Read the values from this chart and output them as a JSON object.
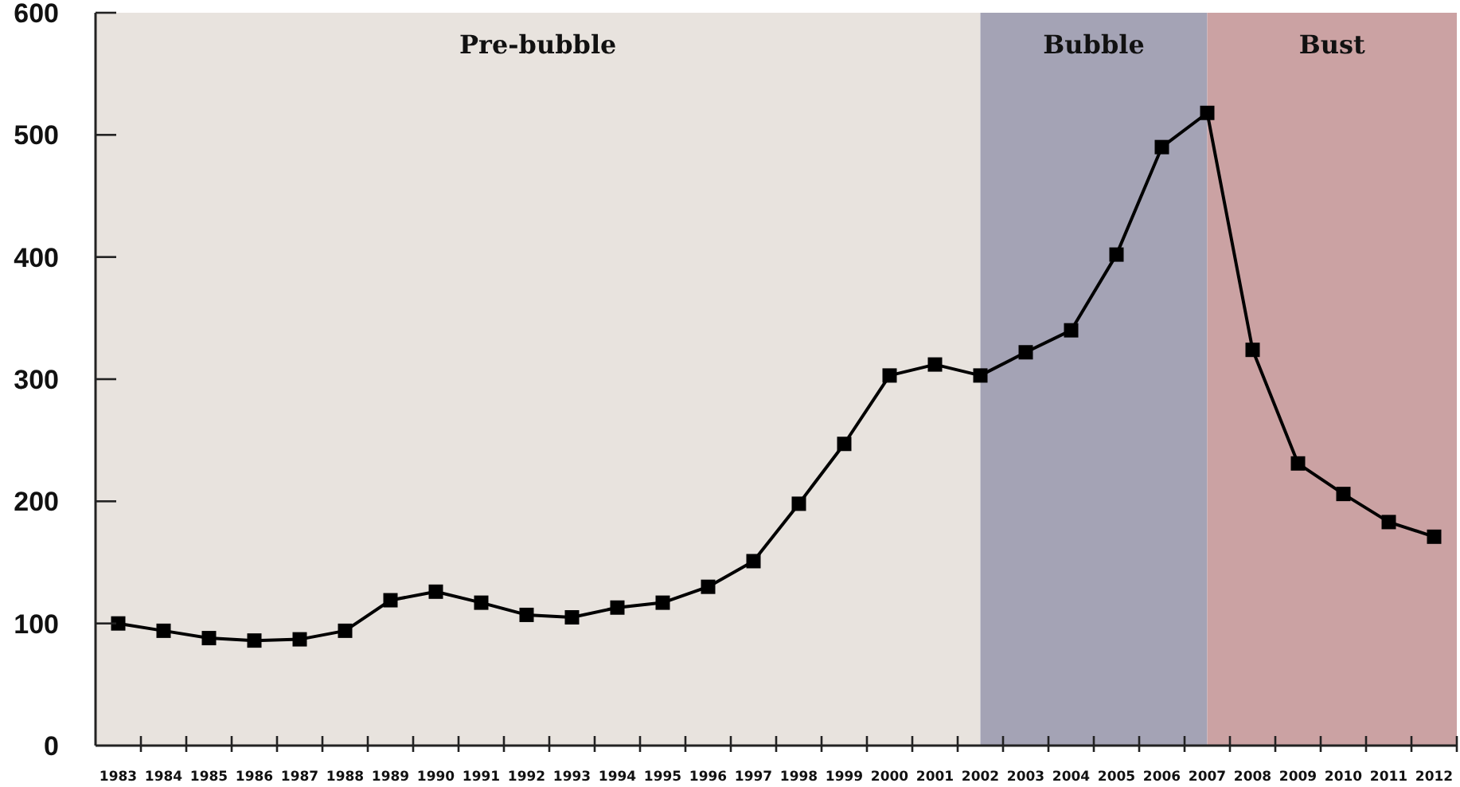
{
  "chart_data": {
    "type": "line",
    "marker": "square",
    "line_style": "solid",
    "x": [
      1983,
      1984,
      1985,
      1986,
      1987,
      1988,
      1989,
      1990,
      1991,
      1992,
      1993,
      1994,
      1995,
      1996,
      1997,
      1998,
      1999,
      2000,
      2001,
      2002,
      2003,
      2004,
      2005,
      2006,
      2007,
      2008,
      2009,
      2010,
      2011,
      2012
    ],
    "series": [
      {
        "color": "#000000",
        "values": [
          100,
          94,
          88,
          86,
          87,
          94,
          119,
          126,
          117,
          107,
          105,
          113,
          117,
          130,
          151,
          198,
          247,
          303,
          312,
          303,
          322,
          340,
          402,
          490,
          518,
          324,
          231,
          206,
          183,
          171
        ]
      }
    ],
    "xlim": [
      1982.5,
      2012.5
    ],
    "xticks": [
      1983,
      1984,
      1985,
      1986,
      1987,
      1988,
      1989,
      1990,
      1991,
      1992,
      1993,
      1994,
      1995,
      1996,
      1997,
      1998,
      1999,
      2000,
      2001,
      2002,
      2003,
      2004,
      2005,
      2006,
      2007,
      2008,
      2009,
      2010,
      2011,
      2012,
      {
        "value": 1983.5,
        "label": null
      },
      {
        "value": 1984.5,
        "label": null
      },
      {
        "value": 1985.5,
        "label": null
      },
      {
        "value": 1986.5,
        "label": null
      },
      {
        "value": 1987.5,
        "label": null
      },
      {
        "value": 1988.5,
        "label": null
      },
      {
        "value": 1989.5,
        "label": null
      },
      {
        "value": 1990.5,
        "label": null
      },
      {
        "value": 1991.5,
        "label": null
      },
      {
        "value": 1992.5,
        "label": null
      },
      {
        "value": 1993.5,
        "label": null
      },
      {
        "value": 1994.5,
        "label": null
      },
      {
        "value": 1995.5,
        "label": null
      },
      {
        "value": 1996.5,
        "label": null
      },
      {
        "value": 1997.5,
        "label": null
      },
      {
        "value": 1998.5,
        "label": null
      },
      {
        "value": 1999.5,
        "label": null
      },
      {
        "value": 2000.5,
        "label": null
      },
      {
        "value": 2001.5,
        "label": null
      },
      {
        "value": 2002.5,
        "label": null
      },
      {
        "value": 2003.5,
        "label": null
      },
      {
        "value": 2004.5,
        "label": null
      },
      {
        "value": 2005.5,
        "label": null
      },
      {
        "value": 2006.5,
        "label": null
      },
      {
        "value": 2007.5,
        "label": null
      },
      {
        "value": 2008.5,
        "label": null
      },
      {
        "value": 2009.5,
        "label": null
      },
      {
        "value": 2010.5,
        "label": null
      },
      {
        "value": 2011.5,
        "label": null
      },
      {
        "value": 2012.5,
        "label": null
      }
    ],
    "ylim": [
      0,
      600
    ],
    "yticks": [
      0,
      100,
      200,
      300,
      400,
      500,
      600
    ],
    "bands": [
      {
        "axis": "x",
        "from": 1982.5,
        "to": 2002,
        "label": "Pre-bubble",
        "color": "#e8e3de"
      },
      {
        "axis": "x",
        "from": 2002,
        "to": 2007,
        "label": "Bubble",
        "color": "#a4a3b5"
      },
      {
        "axis": "x",
        "from": 2007,
        "to": 2012.5,
        "label": "Bust",
        "color": "#cba2a3"
      }
    ]
  }
}
